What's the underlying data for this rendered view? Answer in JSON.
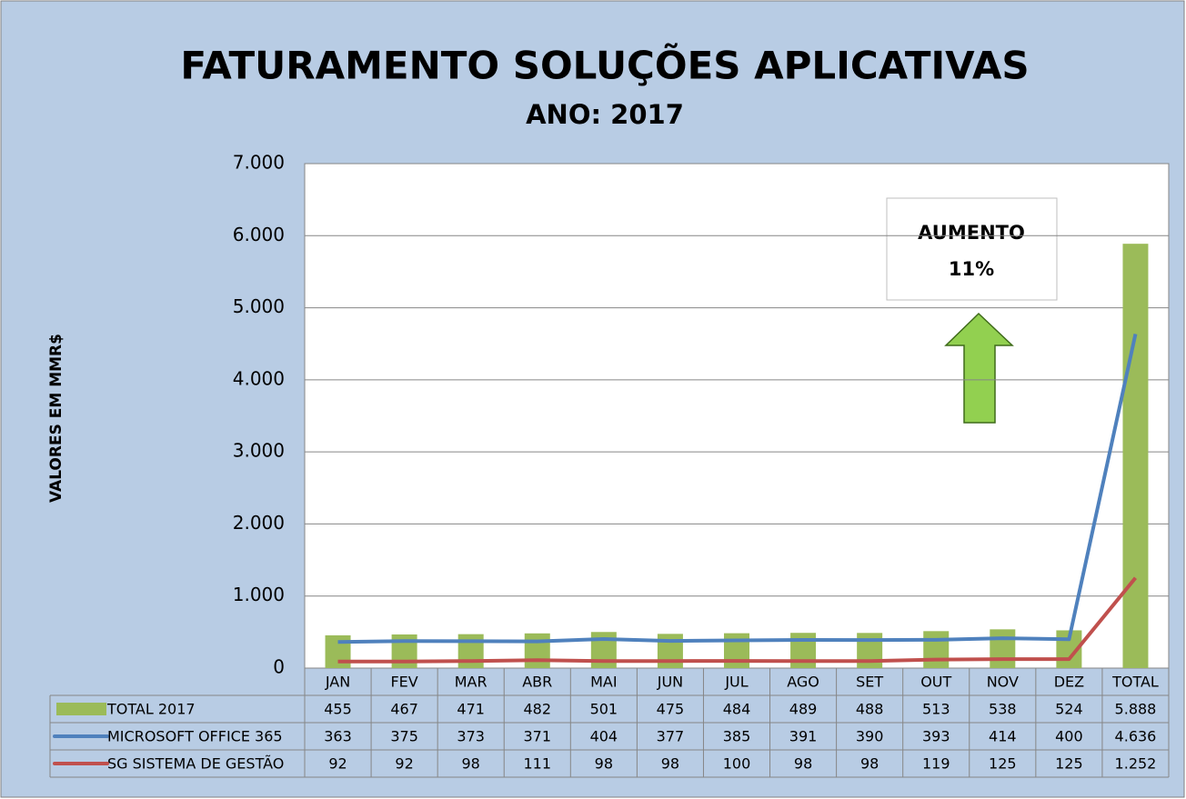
{
  "chart_data": {
    "type": "combo",
    "title": "FATURAMENTO SOLUÇÕES APLICATIVAS",
    "subtitle": "ANO: 2017",
    "y_label": "VALORES EM MMR$",
    "annotation": [
      "AUMENTO",
      "11%"
    ],
    "categories": [
      "JAN",
      "FEV",
      "MAR",
      "ABR",
      "MAI",
      "JUN",
      "JUL",
      "AGO",
      "SET",
      "OUT",
      "NOV",
      "DEZ",
      "TOTAL"
    ],
    "series": [
      {
        "name": "TOTAL 2017",
        "type": "bar",
        "color": "#9bbb59",
        "values": [
          455,
          467,
          471,
          482,
          501,
          475,
          484,
          489,
          488,
          513,
          538,
          524,
          5888
        ],
        "value_labels": [
          "455",
          "467",
          "471",
          "482",
          "501",
          "475",
          "484",
          "489",
          "488",
          "513",
          "538",
          "524",
          "5.888"
        ]
      },
      {
        "name": "MICROSOFT OFFICE 365",
        "type": "line",
        "color": "#4f81bd",
        "values": [
          363,
          375,
          373,
          371,
          404,
          377,
          385,
          391,
          390,
          393,
          414,
          400,
          4636
        ],
        "value_labels": [
          "363",
          "375",
          "373",
          "371",
          "404",
          "377",
          "385",
          "391",
          "390",
          "393",
          "414",
          "400",
          "4.636"
        ]
      },
      {
        "name": "SG SISTEMA DE GESTÃO",
        "type": "line",
        "color": "#c0504d",
        "values": [
          92,
          92,
          98,
          111,
          98,
          98,
          100,
          98,
          98,
          119,
          125,
          125,
          1252
        ],
        "value_labels": [
          "92",
          "92",
          "98",
          "111",
          "98",
          "98",
          "100",
          "98",
          "98",
          "119",
          "125",
          "125",
          "1.252"
        ]
      }
    ],
    "ylim": [
      0,
      7000
    ],
    "yticks": [
      0,
      {
        "value": 1000,
        "label": "1.000"
      },
      {
        "value": 2000,
        "label": "2.000"
      },
      {
        "value": 3000,
        "label": "3.000"
      },
      {
        "value": 4000,
        "label": "4.000"
      },
      {
        "value": 5000,
        "label": "5.000"
      },
      {
        "value": 6000,
        "label": "6.000"
      },
      {
        "value": 7000,
        "label": "7.000"
      }
    ],
    "grid": true
  }
}
